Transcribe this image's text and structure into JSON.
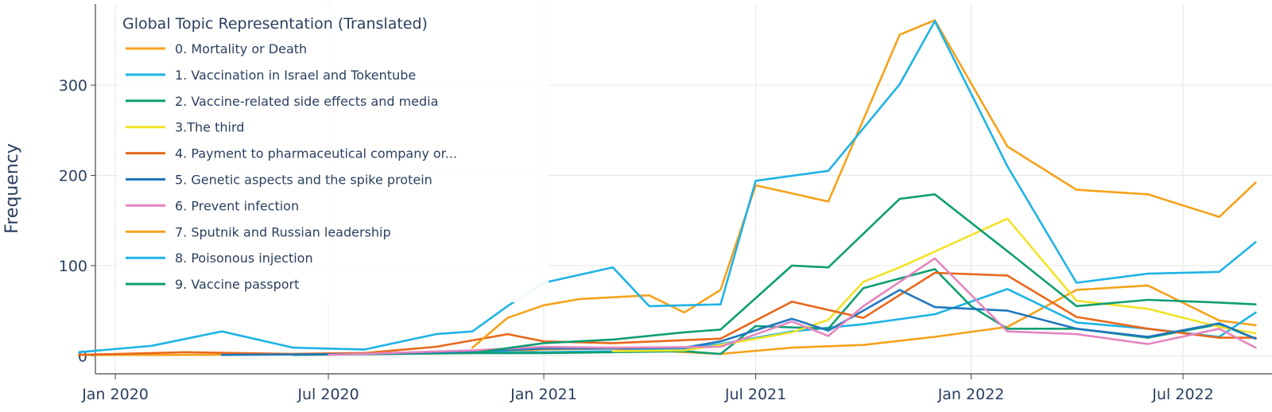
{
  "chart_data": {
    "type": "line",
    "xlabel": "",
    "ylabel": "Frequency",
    "ylim": [
      -20,
      390
    ],
    "xlim": [
      "2019-12-15",
      "2022-09-15"
    ],
    "grid": true,
    "legend_title": "Global Topic Representation (Translated)",
    "legend_position": "top-left",
    "x_tick_labels": [
      {
        "date": "2020-01-01",
        "label": "Jan 2020"
      },
      {
        "date": "2020-07-01",
        "label": "Jul 2020"
      },
      {
        "date": "2021-01-01",
        "label": "Jan 2021"
      },
      {
        "date": "2021-07-01",
        "label": "Jul 2021"
      },
      {
        "date": "2022-01-01",
        "label": "Jan 2022"
      },
      {
        "date": "2022-07-01",
        "label": "Jul 2022"
      }
    ],
    "y_ticks": [
      0,
      100,
      200,
      300
    ],
    "series": [
      {
        "name": "0. Mortality or Death",
        "color": "#F5A21B",
        "x": [
          "2019-12-01",
          "2020-03-01",
          "2020-06-01",
          "2020-08-01",
          "2020-11-01",
          "2021-01-01",
          "2021-03-01",
          "2021-06-01",
          "2021-08-01",
          "2021-10-01",
          "2021-12-01",
          "2022-02-01",
          "2022-04-01",
          "2022-06-01",
          "2022-08-01",
          "2022-09-01"
        ],
        "y": [
          1,
          1,
          2,
          3,
          3,
          7,
          8,
          2,
          9,
          12,
          21,
          32,
          73,
          78,
          39,
          34
        ]
      },
      {
        "name": "1. Vaccination in Israel and Tokentube",
        "color": "#1FB3E6",
        "x": [
          "2020-09-01",
          "2020-11-01",
          "2021-01-01",
          "2021-03-01",
          "2021-05-01",
          "2021-06-01",
          "2021-08-01",
          "2021-10-01",
          "2021-12-01",
          "2022-02-01",
          "2022-04-01",
          "2022-06-01",
          "2022-08-01",
          "2022-09-01"
        ],
        "y": [
          3,
          4,
          4,
          5,
          8,
          13,
          27,
          35,
          46,
          74,
          37,
          30,
          21,
          48
        ]
      },
      {
        "name": "2. Vaccine-related side effects and media",
        "color": "#0F9E74",
        "x": [
          "2020-06-01",
          "2020-11-01",
          "2021-01-01",
          "2021-03-01",
          "2021-05-01",
          "2021-06-01",
          "2021-07-01",
          "2021-09-01",
          "2021-10-01",
          "2021-12-01",
          "2022-01-01",
          "2022-02-01",
          "2022-04-01",
          "2022-06-01",
          "2022-08-01",
          "2022-09-01"
        ],
        "y": [
          1,
          3,
          3,
          4,
          5,
          2,
          33,
          30,
          75,
          96,
          55,
          30,
          30,
          20,
          35,
          19
        ]
      },
      {
        "name": "3.The third",
        "color": "#F2E227",
        "x": [
          "2021-03-01",
          "2021-05-01",
          "2021-06-01",
          "2021-08-01",
          "2021-09-01",
          "2021-10-01",
          "2021-11-01",
          "2022-02-01",
          "2022-04-01",
          "2022-06-01",
          "2022-08-01",
          "2022-09-01"
        ],
        "y": [
          5,
          6,
          12,
          26,
          40,
          82,
          98,
          152,
          61,
          52,
          32,
          25
        ]
      },
      {
        "name": "4. Payment to pharmaceutical company or...",
        "color": "#E8681A",
        "x": [
          "2019-12-01",
          "2020-03-01",
          "2020-06-01",
          "2020-08-01",
          "2020-10-01",
          "2020-12-01",
          "2021-01-01",
          "2021-03-01",
          "2021-06-01",
          "2021-08-01",
          "2021-10-01",
          "2021-12-01",
          "2022-02-01",
          "2022-04-01",
          "2022-06-01",
          "2022-08-01",
          "2022-09-01"
        ],
        "y": [
          1,
          4,
          2,
          3,
          10,
          24,
          16,
          14,
          19,
          60,
          42,
          92,
          89,
          43,
          30,
          20,
          20
        ]
      },
      {
        "name": "5. Genetic aspects and the spike protein",
        "color": "#1F78BE",
        "x": [
          "2020-04-01",
          "2020-08-01",
          "2020-11-01",
          "2021-01-01",
          "2021-03-01",
          "2021-05-01",
          "2021-06-01",
          "2021-08-01",
          "2021-09-01",
          "2021-11-01",
          "2021-12-01",
          "2022-02-01",
          "2022-04-01",
          "2022-06-01",
          "2022-08-01",
          "2022-09-01"
        ],
        "y": [
          1,
          2,
          5,
          8,
          8,
          9,
          16,
          41,
          28,
          73,
          54,
          50,
          30,
          21,
          36,
          19
        ]
      },
      {
        "name": "6. Prevent infection",
        "color": "#E585BF",
        "x": [
          "2020-07-01",
          "2020-11-01",
          "2021-01-01",
          "2021-03-01",
          "2021-06-01",
          "2021-08-01",
          "2021-09-01",
          "2021-10-01",
          "2021-12-01",
          "2022-02-01",
          "2022-04-01",
          "2022-06-01",
          "2022-08-01",
          "2022-09-01"
        ],
        "y": [
          1,
          6,
          10,
          9,
          10,
          38,
          22,
          55,
          108,
          27,
          24,
          13,
          30,
          9
        ]
      },
      {
        "name": "7. Sputnik and Russian leadership",
        "color": "#F5A21B",
        "x": [
          "2020-11-01",
          "2020-12-01",
          "2021-01-01",
          "2021-02-01",
          "2021-04-01",
          "2021-05-01",
          "2021-06-01",
          "2021-07-01",
          "2021-09-01",
          "2021-11-01",
          "2021-12-01",
          "2022-02-01",
          "2022-04-01",
          "2022-06-01",
          "2022-08-01",
          "2022-09-01"
        ],
        "y": [
          9,
          42,
          56,
          63,
          67,
          48,
          73,
          189,
          171,
          356,
          372,
          232,
          184,
          179,
          154,
          192
        ]
      },
      {
        "name": "8. Poisonous injection",
        "color": "#1FB3E6",
        "x": [
          "2019-12-01",
          "2020-02-01",
          "2020-04-01",
          "2020-06-01",
          "2020-08-01",
          "2020-10-01",
          "2020-11-01",
          "2020-12-01",
          "2021-01-01",
          "2021-03-01",
          "2021-04-01",
          "2021-06-01",
          "2021-07-01",
          "2021-09-01",
          "2021-11-01",
          "2021-12-01",
          "2022-02-01",
          "2022-04-01",
          "2022-06-01",
          "2022-08-01",
          "2022-09-01"
        ],
        "y": [
          4,
          11,
          27,
          9,
          7,
          24,
          27,
          55,
          81,
          98,
          55,
          57,
          194,
          205,
          301,
          371,
          210,
          81,
          91,
          93,
          126
        ]
      },
      {
        "name": "9. Vaccine passport",
        "color": "#0F9E74",
        "x": [
          "2020-11-01",
          "2021-01-01",
          "2021-03-01",
          "2021-05-01",
          "2021-06-01",
          "2021-08-01",
          "2021-09-01",
          "2021-11-01",
          "2021-12-01",
          "2022-02-01",
          "2022-04-01",
          "2022-06-01",
          "2022-08-01",
          "2022-09-01"
        ],
        "y": [
          3,
          14,
          18,
          26,
          29,
          100,
          98,
          174,
          179,
          116,
          55,
          62,
          59,
          57
        ]
      }
    ]
  }
}
